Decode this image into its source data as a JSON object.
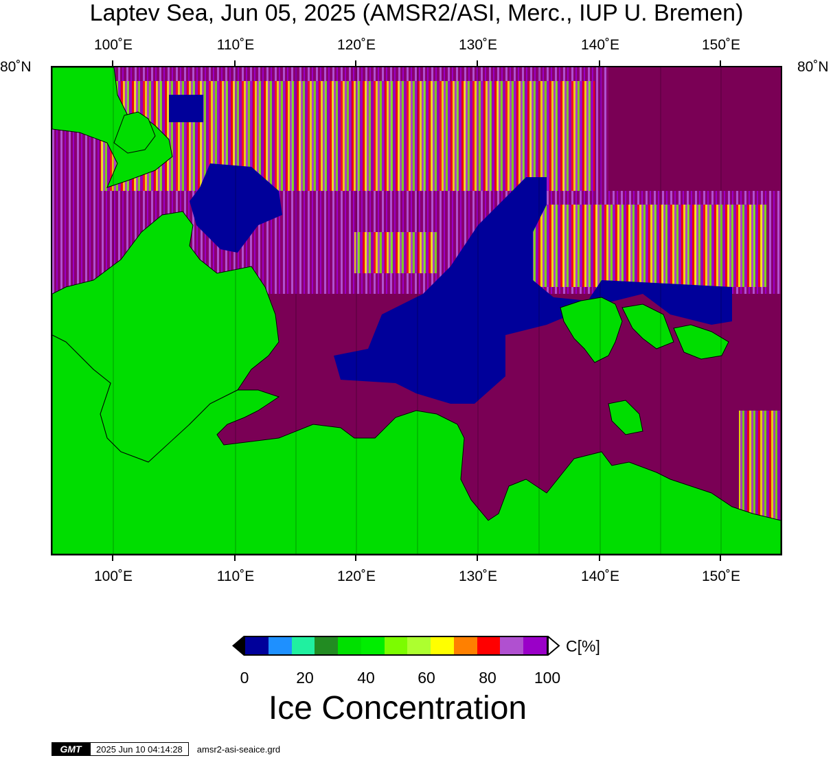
{
  "title": "Laptev Sea, Jun 05, 2025 (AMSR2/ASI, Merc., IUP U. Bremen)",
  "longitude_labels": [
    "100˚E",
    "110˚E",
    "120˚E",
    "130˚E",
    "140˚E",
    "150˚E"
  ],
  "latitude_labels": {
    "left": "80˚N",
    "right": "80˚N"
  },
  "colorbar": {
    "unit": "C[%]",
    "ticks": [
      "0",
      "20",
      "40",
      "60",
      "80",
      "100"
    ],
    "colors": [
      "#00009a",
      "#1e90ff",
      "#20f0a0",
      "#228b22",
      "#00e000",
      "#00ee00",
      "#7cfc00",
      "#adff2f",
      "#ffff00",
      "#ff8000",
      "#ff0000",
      "#b050d0",
      "#9a00c8"
    ]
  },
  "colors": {
    "land": "#00dd00",
    "ice_100": "#7a0055",
    "open_water": "#00009a"
  },
  "caption": "Ice Concentration",
  "footer": {
    "logo": "GMT",
    "timestamp": "2025 Jun 10 04:14:28",
    "filename": "amsr2-asi-seaice.grd"
  }
}
